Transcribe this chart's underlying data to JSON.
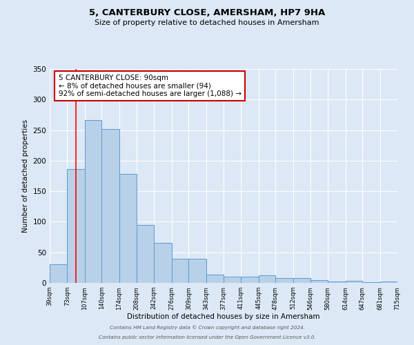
{
  "title": "5, CANTERBURY CLOSE, AMERSHAM, HP7 9HA",
  "subtitle": "Size of property relative to detached houses in Amersham",
  "xlabel": "Distribution of detached houses by size in Amersham",
  "ylabel": "Number of detached properties",
  "bar_color": "#b8d0e8",
  "bar_edge_color": "#5b9bd5",
  "background_color": "#dce8f5",
  "grid_color": "#ffffff",
  "bin_edges": [
    39,
    73,
    107,
    140,
    174,
    208,
    242,
    276,
    309,
    343,
    377,
    411,
    445,
    478,
    512,
    546,
    580,
    614,
    647,
    681,
    715
  ],
  "bin_labels": [
    "39sqm",
    "73sqm",
    "107sqm",
    "140sqm",
    "174sqm",
    "208sqm",
    "242sqm",
    "276sqm",
    "309sqm",
    "343sqm",
    "377sqm",
    "411sqm",
    "445sqm",
    "478sqm",
    "512sqm",
    "546sqm",
    "580sqm",
    "614sqm",
    "647sqm",
    "681sqm",
    "715sqm"
  ],
  "bar_heights": [
    30,
    186,
    267,
    252,
    178,
    95,
    65,
    40,
    39,
    14,
    10,
    10,
    12,
    8,
    8,
    5,
    2,
    3,
    1,
    2
  ],
  "ylim": [
    0,
    350
  ],
  "yticks": [
    0,
    50,
    100,
    150,
    200,
    250,
    300,
    350
  ],
  "red_line_x": 90,
  "annotation_title": "5 CANTERBURY CLOSE: 90sqm",
  "annotation_line1": "← 8% of detached houses are smaller (94)",
  "annotation_line2": "92% of semi-detached houses are larger (1,088) →",
  "annotation_box_color": "#ffffff",
  "annotation_box_edge": "#cc0000",
  "footer_line1": "Contains HM Land Registry data © Crown copyright and database right 2024.",
  "footer_line2": "Contains public sector information licensed under the Open Government Licence v3.0."
}
